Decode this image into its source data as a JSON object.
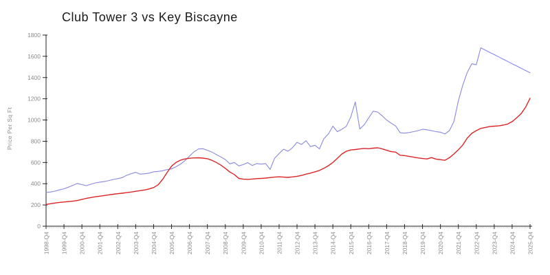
{
  "page": {
    "title": "Club Tower 3 vs Key Biscayne"
  },
  "chart_data": {
    "type": "line",
    "title": "Club Tower 3 vs Key Biscayne",
    "xlabel": "",
    "ylabel": "Price Per Sq Ft",
    "x_unit": "quarter",
    "x_tick_labels": [
      "1998-Q4",
      "1999-Q4",
      "2000-Q4",
      "2001-Q4",
      "2002-Q4",
      "2003-Q4",
      "2004-Q4",
      "2005-Q4",
      "2006-Q4",
      "2007-Q4",
      "2008-Q4",
      "2009-Q4",
      "2010-Q4",
      "2011-Q4",
      "2012-Q4",
      "2013-Q4",
      "2014-Q4",
      "2015-Q4",
      "2016-Q4",
      "2017-Q4",
      "2018-Q4",
      "2019-Q4",
      "2020-Q4",
      "2021-Q4",
      "2022-Q4",
      "2023-Q4",
      "2024-Q4",
      "2025-Q4"
    ],
    "x_ticks_every_n_points": 4,
    "y_ticks": [
      0,
      200,
      400,
      600,
      800,
      1000,
      1200,
      1400,
      1600,
      1800
    ],
    "ylim": [
      0,
      1800
    ],
    "grid": false,
    "legend_position": "none",
    "axis_color": "#222222",
    "tick_label_color": "#8a8a8a",
    "series": [
      {
        "name": "Club Tower 3",
        "color": "#8787e0",
        "stroke_width": 1.1,
        "values": [
          318,
          322,
          330,
          342,
          352,
          368,
          385,
          403,
          392,
          382,
          395,
          408,
          415,
          420,
          430,
          440,
          448,
          458,
          479,
          495,
          507,
          490,
          494,
          500,
          512,
          516,
          522,
          533,
          540,
          560,
          585,
          618,
          660,
          700,
          727,
          730,
          715,
          698,
          675,
          652,
          628,
          587,
          600,
          568,
          580,
          598,
          572,
          590,
          585,
          590,
          535,
          640,
          685,
          725,
          706,
          740,
          790,
          770,
          805,
          750,
          762,
          728,
          824,
          868,
          942,
          890,
          912,
          940,
          1030,
          1170,
          915,
          955,
          1020,
          1083,
          1075,
          1040,
          1000,
          970,
          945,
          880,
          876,
          882,
          890,
          900,
          912,
          908,
          900,
          890,
          885,
          868,
          900,
          985,
          1180,
          1330,
          1450,
          1530,
          1520,
          1680,
          1658,
          1637,
          1616,
          1594,
          1573,
          1552,
          1530,
          1509,
          1488,
          1466,
          1445
        ]
      },
      {
        "name": "Key Biscayne",
        "color": "#dc2326",
        "stroke_width": 1.4,
        "values": [
          205,
          212,
          218,
          224,
          228,
          232,
          236,
          242,
          252,
          262,
          270,
          277,
          283,
          289,
          295,
          301,
          306,
          311,
          316,
          322,
          329,
          335,
          341,
          351,
          364,
          390,
          440,
          505,
          565,
          600,
          622,
          633,
          640,
          643,
          644,
          641,
          635,
          620,
          600,
          575,
          545,
          510,
          487,
          450,
          443,
          441,
          444,
          448,
          450,
          453,
          458,
          462,
          465,
          462,
          460,
          464,
          470,
          478,
          490,
          500,
          512,
          525,
          545,
          570,
          600,
          640,
          680,
          706,
          718,
          722,
          728,
          732,
          730,
          735,
          738,
          728,
          715,
          702,
          698,
          668,
          665,
          658,
          650,
          643,
          637,
          633,
          646,
          632,
          627,
          620,
          645,
          680,
          720,
          765,
          830,
          875,
          900,
          921,
          930,
          938,
          942,
          945,
          952,
          962,
          985,
          1020,
          1060,
          1120,
          1205
        ]
      }
    ]
  }
}
